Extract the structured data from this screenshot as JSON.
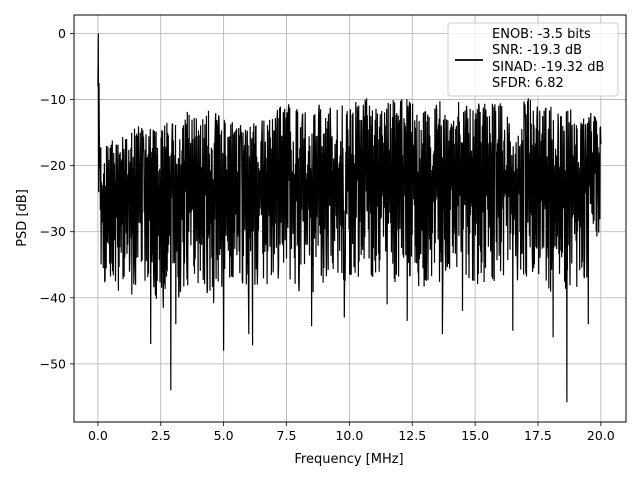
{
  "chart_data": {
    "type": "line",
    "title": "",
    "xlabel": "Frequency [MHz]",
    "ylabel": "PSD [dB]",
    "xlim": [
      -0.95,
      21.0
    ],
    "ylim": [
      -58.8,
      2.8
    ],
    "xticks": [
      0.0,
      2.5,
      5.0,
      7.5,
      10.0,
      12.5,
      15.0,
      17.5,
      20.0
    ],
    "xtick_labels": [
      "0.0",
      "2.5",
      "5.0",
      "7.5",
      "10.0",
      "12.5",
      "15.0",
      "17.5",
      "20.0"
    ],
    "yticks": [
      0,
      -10,
      -20,
      -30,
      -40,
      -50
    ],
    "ytick_labels": [
      "0",
      "−10",
      "−20",
      "−30",
      "−40",
      "−50"
    ],
    "grid": true,
    "line_color": "#000000",
    "legend": {
      "position": "upper-right",
      "entries": [
        "ENOB: -3.5 bits",
        "SNR: -19.3 dB",
        "SINAD: -19.32 dB",
        "SFDR: 6.82"
      ]
    },
    "series": [
      {
        "x": [
          0.0,
          0.02,
          0.05,
          0.08,
          0.12,
          0.2,
          0.4,
          0.6,
          0.8,
          1.0,
          1.2,
          1.6,
          2.0,
          2.4,
          2.8,
          3.2,
          3.6,
          4.0,
          4.4,
          4.8,
          5.2,
          5.6,
          6.0,
          6.4,
          6.8,
          7.2,
          7.6,
          8.0,
          8.4,
          8.8,
          9.2,
          9.6,
          10.0,
          10.4,
          10.8,
          11.2,
          11.6,
          12.0,
          12.4,
          12.8,
          13.2,
          13.6,
          14.0,
          14.4,
          14.8,
          15.2,
          15.6,
          16.0,
          16.4,
          16.8,
          17.2,
          17.6,
          18.0,
          18.4,
          18.8,
          19.2,
          19.6,
          20.0
        ],
        "y_upper": [
          -8,
          0,
          -7.5,
          -10,
          -16,
          -16.5,
          -17,
          -16,
          -16,
          -15,
          -15,
          -14,
          -14.5,
          -14,
          -12,
          -13.5,
          -11.5,
          -13,
          -11,
          -12,
          -13,
          -14,
          -13,
          -13,
          -12,
          -11,
          -10.5,
          -11.5,
          -12,
          -10.5,
          -11,
          -11,
          -10.5,
          -9,
          -10,
          -11,
          -10,
          -9,
          -10,
          -12,
          -11.5,
          -9.5,
          -13,
          -9.5,
          -11,
          -10.5,
          -10.5,
          -10,
          -12.5,
          -10.5,
          -9.5,
          -11,
          -11,
          -12.5,
          -11,
          -12.5,
          -12,
          -13
        ],
        "y_lower": [
          -24,
          -26,
          -30,
          -30,
          -37,
          -38,
          -38,
          -42,
          -40,
          -38,
          -36,
          -40,
          -38,
          -42,
          -38,
          -40,
          -38,
          -38,
          -40,
          -41,
          -38,
          -38,
          -40,
          -38,
          -38,
          -38,
          -38,
          -40,
          -40,
          -38,
          -38,
          -37,
          -38,
          -38,
          -38,
          -37,
          -40,
          -38,
          -38,
          -40,
          -38,
          -40,
          -36,
          -38,
          -40,
          -40,
          -38,
          -38,
          -38,
          -38,
          -38,
          -38,
          -40,
          -38,
          -40,
          -38,
          -38,
          -28
        ],
        "dips": [
          [
            1.35,
            -39.5
          ],
          [
            2.1,
            -47
          ],
          [
            2.6,
            -41.5
          ],
          [
            2.9,
            -54
          ],
          [
            3.1,
            -44
          ],
          [
            4.6,
            -40.8
          ],
          [
            5.0,
            -48
          ],
          [
            6.0,
            -45.5
          ],
          [
            6.15,
            -47.2
          ],
          [
            8.5,
            -44.3
          ],
          [
            9.8,
            -43
          ],
          [
            11.5,
            -41
          ],
          [
            12.3,
            -43.5
          ],
          [
            13.7,
            -45.5
          ],
          [
            14.5,
            -42
          ],
          [
            16.5,
            -45
          ],
          [
            18.1,
            -46
          ],
          [
            18.65,
            -55.8
          ],
          [
            19.5,
            -44
          ]
        ]
      }
    ]
  }
}
